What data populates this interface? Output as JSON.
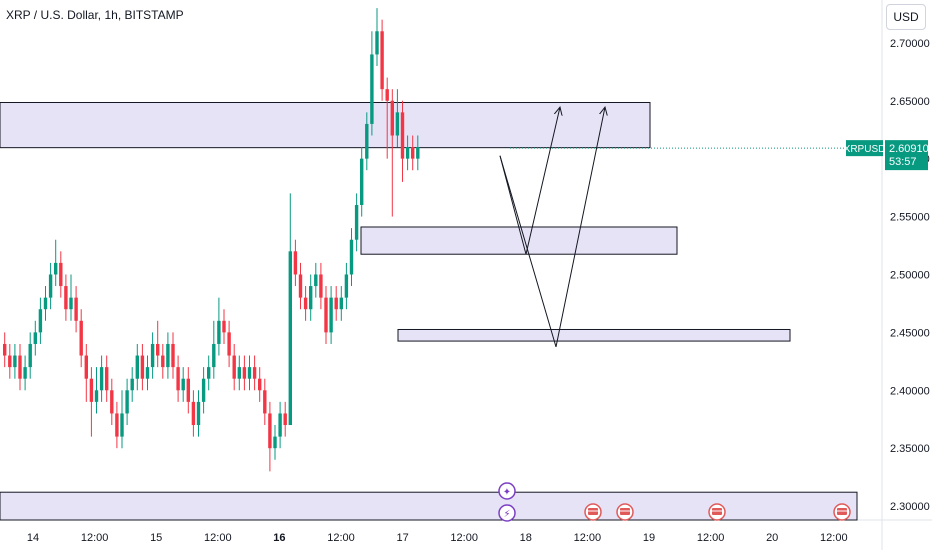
{
  "header": {
    "title": "XRP / U.S. Dollar, 1h, BITSTAMP",
    "currency": "USD"
  },
  "price_label": {
    "symbol": "XRPUSD",
    "price": "2.60910",
    "countdown": "53:57"
  },
  "colors": {
    "up": "#089981",
    "down": "#f23645",
    "zone_fill": "#e7e3f6",
    "zone_stroke": "#131722",
    "event_accent": "#e05a5a",
    "event_purple": "#7b3fc4"
  },
  "chart_data": {
    "type": "candlestick",
    "title": "XRP / U.S. Dollar, 1h, BITSTAMP",
    "y_axis": {
      "range": [
        2.288,
        2.737
      ],
      "ticks": [
        "2.70000",
        "2.65000",
        "2.60000",
        "2.55000",
        "2.50000",
        "2.45000",
        "2.40000",
        "2.35000",
        "2.30000"
      ]
    },
    "x_axis": {
      "ticks": [
        "14",
        "12:00",
        "15",
        "12:00",
        "16",
        "12:00",
        "17",
        "12:00",
        "18",
        "12:00",
        "19",
        "12:00",
        "20",
        "12:00"
      ]
    },
    "current_price": 2.6091,
    "zones": [
      {
        "from": 2.6095,
        "to": 2.6485
      },
      {
        "from": 2.5175,
        "to": 2.541
      },
      {
        "from": 2.4425,
        "to": 2.4525
      },
      {
        "from": 2.288,
        "to": 2.312
      }
    ],
    "projections": [
      {
        "points": [
          2.6025,
          2.5175,
          2.6445
        ]
      },
      {
        "points": [
          2.6025,
          2.4375,
          2.6445
        ]
      }
    ],
    "candles": [
      [
        2.44,
        2.43,
        2.45,
        2.42
      ],
      [
        2.43,
        2.42,
        2.44,
        2.41
      ],
      [
        2.42,
        2.43,
        2.44,
        2.41
      ],
      [
        2.43,
        2.41,
        2.44,
        2.4
      ],
      [
        2.41,
        2.42,
        2.43,
        2.4
      ],
      [
        2.42,
        2.44,
        2.45,
        2.41
      ],
      [
        2.44,
        2.45,
        2.46,
        2.43
      ],
      [
        2.45,
        2.47,
        2.48,
        2.44
      ],
      [
        2.47,
        2.48,
        2.49,
        2.46
      ],
      [
        2.48,
        2.5,
        2.51,
        2.47
      ],
      [
        2.5,
        2.51,
        2.53,
        2.49
      ],
      [
        2.51,
        2.49,
        2.52,
        2.48
      ],
      [
        2.49,
        2.47,
        2.5,
        2.46
      ],
      [
        2.47,
        2.48,
        2.5,
        2.46
      ],
      [
        2.48,
        2.46,
        2.49,
        2.45
      ],
      [
        2.46,
        2.43,
        2.47,
        2.42
      ],
      [
        2.43,
        2.41,
        2.44,
        2.39
      ],
      [
        2.41,
        2.39,
        2.42,
        2.36
      ],
      [
        2.39,
        2.4,
        2.42,
        2.38
      ],
      [
        2.4,
        2.42,
        2.43,
        2.39
      ],
      [
        2.42,
        2.4,
        2.43,
        2.39
      ],
      [
        2.4,
        2.38,
        2.41,
        2.37
      ],
      [
        2.38,
        2.36,
        2.39,
        2.35
      ],
      [
        2.36,
        2.38,
        2.4,
        2.35
      ],
      [
        2.38,
        2.4,
        2.41,
        2.37
      ],
      [
        2.4,
        2.41,
        2.42,
        2.39
      ],
      [
        2.41,
        2.43,
        2.44,
        2.4
      ],
      [
        2.43,
        2.41,
        2.44,
        2.4
      ],
      [
        2.41,
        2.42,
        2.43,
        2.4
      ],
      [
        2.42,
        2.44,
        2.45,
        2.41
      ],
      [
        2.44,
        2.43,
        2.46,
        2.42
      ],
      [
        2.43,
        2.42,
        2.44,
        2.41
      ],
      [
        2.42,
        2.44,
        2.45,
        2.41
      ],
      [
        2.44,
        2.42,
        2.45,
        2.41
      ],
      [
        2.42,
        2.4,
        2.43,
        2.39
      ],
      [
        2.4,
        2.41,
        2.42,
        2.39
      ],
      [
        2.41,
        2.39,
        2.42,
        2.38
      ],
      [
        2.39,
        2.37,
        2.4,
        2.36
      ],
      [
        2.37,
        2.39,
        2.4,
        2.36
      ],
      [
        2.39,
        2.41,
        2.42,
        2.38
      ],
      [
        2.41,
        2.42,
        2.43,
        2.4
      ],
      [
        2.42,
        2.44,
        2.46,
        2.41
      ],
      [
        2.44,
        2.46,
        2.48,
        2.43
      ],
      [
        2.46,
        2.45,
        2.47,
        2.44
      ],
      [
        2.45,
        2.43,
        2.46,
        2.42
      ],
      [
        2.43,
        2.41,
        2.44,
        2.4
      ],
      [
        2.41,
        2.42,
        2.43,
        2.4
      ],
      [
        2.42,
        2.41,
        2.43,
        2.4
      ],
      [
        2.41,
        2.42,
        2.43,
        2.4
      ],
      [
        2.42,
        2.41,
        2.43,
        2.4
      ],
      [
        2.41,
        2.4,
        2.42,
        2.39
      ],
      [
        2.4,
        2.38,
        2.41,
        2.37
      ],
      [
        2.38,
        2.35,
        2.39,
        2.33
      ],
      [
        2.35,
        2.36,
        2.37,
        2.34
      ],
      [
        2.36,
        2.38,
        2.39,
        2.35
      ],
      [
        2.38,
        2.37,
        2.39,
        2.36
      ],
      [
        2.37,
        2.52,
        2.57,
        2.37
      ],
      [
        2.52,
        2.5,
        2.53,
        2.49
      ],
      [
        2.5,
        2.48,
        2.51,
        2.47
      ],
      [
        2.48,
        2.47,
        2.49,
        2.46
      ],
      [
        2.47,
        2.49,
        2.5,
        2.46
      ],
      [
        2.49,
        2.5,
        2.51,
        2.48
      ],
      [
        2.5,
        2.48,
        2.51,
        2.47
      ],
      [
        2.48,
        2.45,
        2.49,
        2.44
      ],
      [
        2.45,
        2.48,
        2.49,
        2.44
      ],
      [
        2.48,
        2.47,
        2.49,
        2.46
      ],
      [
        2.47,
        2.48,
        2.49,
        2.46
      ],
      [
        2.48,
        2.5,
        2.51,
        2.47
      ],
      [
        2.5,
        2.53,
        2.54,
        2.49
      ],
      [
        2.53,
        2.56,
        2.57,
        2.52
      ],
      [
        2.56,
        2.6,
        2.61,
        2.55
      ],
      [
        2.6,
        2.63,
        2.64,
        2.59
      ],
      [
        2.63,
        2.69,
        2.71,
        2.62
      ],
      [
        2.69,
        2.71,
        2.73,
        2.68
      ],
      [
        2.71,
        2.66,
        2.72,
        2.65
      ],
      [
        2.66,
        2.65,
        2.67,
        2.6
      ],
      [
        2.65,
        2.62,
        2.66,
        2.55
      ],
      [
        2.62,
        2.64,
        2.66,
        2.61
      ],
      [
        2.64,
        2.6,
        2.65,
        2.58
      ],
      [
        2.6,
        2.61,
        2.62,
        2.59
      ],
      [
        2.61,
        2.6,
        2.62,
        2.59
      ],
      [
        2.6,
        2.61,
        2.62,
        2.59
      ]
    ]
  }
}
